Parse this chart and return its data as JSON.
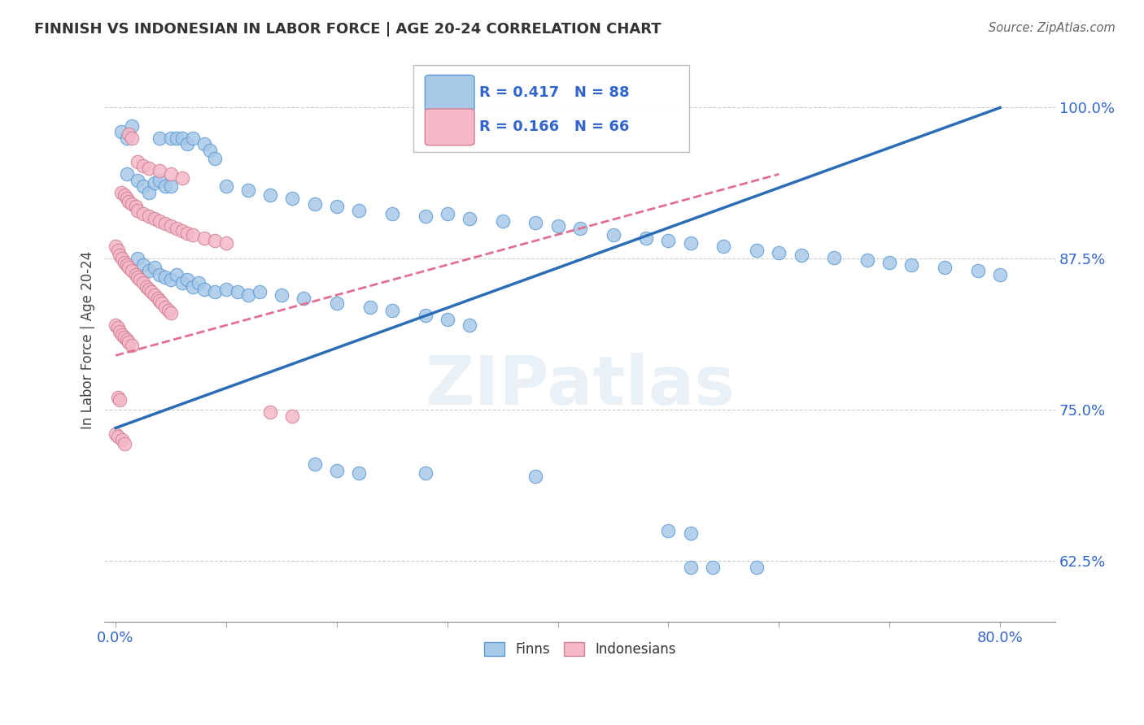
{
  "title": "FINNISH VS INDONESIAN IN LABOR FORCE | AGE 20-24 CORRELATION CHART",
  "source_text": "Source: ZipAtlas.com",
  "ylabel": "In Labor Force | Age 20-24",
  "ytick_labels": [
    "62.5%",
    "75.0%",
    "87.5%",
    "100.0%"
  ],
  "ytick_values": [
    0.625,
    0.75,
    0.875,
    1.0
  ],
  "xtick_positions": [
    0.0,
    0.1,
    0.2,
    0.3,
    0.4,
    0.5,
    0.6,
    0.7,
    0.8
  ],
  "xlim": [
    -0.01,
    0.85
  ],
  "ylim": [
    0.575,
    1.04
  ],
  "legend_blue_r": "R = 0.417",
  "legend_blue_n": "N = 88",
  "legend_pink_r": "R = 0.166",
  "legend_pink_n": "N = 66",
  "blue_color": "#a8c8e8",
  "blue_edge_color": "#5b9bd5",
  "pink_color": "#f4b8c8",
  "pink_edge_color": "#d08090",
  "blue_line_color": "#2a6db5",
  "pink_line_color": "#e07090",
  "legend_text_color": "#3366cc",
  "watermark": "ZIPatlas",
  "finn_label": "Finns",
  "indonesian_label": "Indonesians",
  "blue_line": [
    [
      0.0,
      0.735
    ],
    [
      0.8,
      1.0
    ]
  ],
  "pink_line": [
    [
      0.0,
      0.795
    ],
    [
      0.6,
      0.945
    ]
  ],
  "blue_scatter": [
    [
      0.005,
      0.98
    ],
    [
      0.01,
      0.975
    ],
    [
      0.015,
      0.985
    ],
    [
      0.04,
      0.975
    ],
    [
      0.05,
      0.975
    ],
    [
      0.055,
      0.975
    ],
    [
      0.06,
      0.975
    ],
    [
      0.065,
      0.97
    ],
    [
      0.07,
      0.975
    ],
    [
      0.08,
      0.97
    ],
    [
      0.085,
      0.965
    ],
    [
      0.09,
      0.958
    ],
    [
      0.01,
      0.945
    ],
    [
      0.02,
      0.94
    ],
    [
      0.025,
      0.935
    ],
    [
      0.03,
      0.93
    ],
    [
      0.035,
      0.938
    ],
    [
      0.04,
      0.94
    ],
    [
      0.045,
      0.935
    ],
    [
      0.05,
      0.935
    ],
    [
      0.1,
      0.935
    ],
    [
      0.12,
      0.932
    ],
    [
      0.14,
      0.928
    ],
    [
      0.16,
      0.925
    ],
    [
      0.18,
      0.92
    ],
    [
      0.2,
      0.918
    ],
    [
      0.22,
      0.915
    ],
    [
      0.25,
      0.912
    ],
    [
      0.28,
      0.91
    ],
    [
      0.3,
      0.912
    ],
    [
      0.32,
      0.908
    ],
    [
      0.35,
      0.906
    ],
    [
      0.38,
      0.905
    ],
    [
      0.4,
      0.902
    ],
    [
      0.42,
      0.9
    ],
    [
      0.45,
      0.895
    ],
    [
      0.48,
      0.892
    ],
    [
      0.5,
      0.89
    ],
    [
      0.52,
      0.888
    ],
    [
      0.55,
      0.885
    ],
    [
      0.58,
      0.882
    ],
    [
      0.6,
      0.88
    ],
    [
      0.62,
      0.878
    ],
    [
      0.65,
      0.876
    ],
    [
      0.68,
      0.874
    ],
    [
      0.7,
      0.872
    ],
    [
      0.72,
      0.87
    ],
    [
      0.75,
      0.868
    ],
    [
      0.78,
      0.865
    ],
    [
      0.8,
      0.862
    ],
    [
      0.02,
      0.875
    ],
    [
      0.025,
      0.87
    ],
    [
      0.03,
      0.865
    ],
    [
      0.035,
      0.868
    ],
    [
      0.04,
      0.862
    ],
    [
      0.045,
      0.86
    ],
    [
      0.05,
      0.858
    ],
    [
      0.055,
      0.862
    ],
    [
      0.06,
      0.855
    ],
    [
      0.065,
      0.858
    ],
    [
      0.07,
      0.852
    ],
    [
      0.075,
      0.855
    ],
    [
      0.08,
      0.85
    ],
    [
      0.09,
      0.848
    ],
    [
      0.1,
      0.85
    ],
    [
      0.11,
      0.848
    ],
    [
      0.12,
      0.845
    ],
    [
      0.13,
      0.848
    ],
    [
      0.15,
      0.845
    ],
    [
      0.17,
      0.842
    ],
    [
      0.2,
      0.838
    ],
    [
      0.23,
      0.835
    ],
    [
      0.25,
      0.832
    ],
    [
      0.28,
      0.828
    ],
    [
      0.3,
      0.825
    ],
    [
      0.32,
      0.82
    ],
    [
      0.18,
      0.705
    ],
    [
      0.2,
      0.7
    ],
    [
      0.22,
      0.698
    ],
    [
      0.38,
      0.695
    ],
    [
      0.28,
      0.698
    ],
    [
      0.5,
      0.65
    ],
    [
      0.52,
      0.648
    ],
    [
      0.52,
      0.62
    ],
    [
      0.54,
      0.62
    ],
    [
      0.58,
      0.62
    ]
  ],
  "pink_scatter": [
    [
      0.012,
      0.978
    ],
    [
      0.015,
      0.975
    ],
    [
      0.02,
      0.955
    ],
    [
      0.025,
      0.952
    ],
    [
      0.03,
      0.95
    ],
    [
      0.04,
      0.948
    ],
    [
      0.05,
      0.945
    ],
    [
      0.06,
      0.942
    ],
    [
      0.005,
      0.93
    ],
    [
      0.008,
      0.928
    ],
    [
      0.01,
      0.925
    ],
    [
      0.012,
      0.922
    ],
    [
      0.015,
      0.92
    ],
    [
      0.018,
      0.918
    ],
    [
      0.02,
      0.915
    ],
    [
      0.025,
      0.912
    ],
    [
      0.03,
      0.91
    ],
    [
      0.035,
      0.908
    ],
    [
      0.04,
      0.906
    ],
    [
      0.045,
      0.904
    ],
    [
      0.05,
      0.902
    ],
    [
      0.055,
      0.9
    ],
    [
      0.06,
      0.898
    ],
    [
      0.065,
      0.896
    ],
    [
      0.07,
      0.895
    ],
    [
      0.08,
      0.892
    ],
    [
      0.09,
      0.89
    ],
    [
      0.1,
      0.888
    ],
    [
      0.0,
      0.885
    ],
    [
      0.002,
      0.882
    ],
    [
      0.004,
      0.878
    ],
    [
      0.006,
      0.875
    ],
    [
      0.008,
      0.872
    ],
    [
      0.01,
      0.87
    ],
    [
      0.012,
      0.868
    ],
    [
      0.015,
      0.865
    ],
    [
      0.018,
      0.862
    ],
    [
      0.02,
      0.86
    ],
    [
      0.022,
      0.858
    ],
    [
      0.025,
      0.855
    ],
    [
      0.028,
      0.852
    ],
    [
      0.03,
      0.85
    ],
    [
      0.032,
      0.848
    ],
    [
      0.035,
      0.845
    ],
    [
      0.038,
      0.842
    ],
    [
      0.04,
      0.84
    ],
    [
      0.042,
      0.838
    ],
    [
      0.045,
      0.835
    ],
    [
      0.048,
      0.832
    ],
    [
      0.05,
      0.83
    ],
    [
      0.0,
      0.82
    ],
    [
      0.002,
      0.818
    ],
    [
      0.004,
      0.815
    ],
    [
      0.006,
      0.812
    ],
    [
      0.008,
      0.81
    ],
    [
      0.01,
      0.808
    ],
    [
      0.012,
      0.806
    ],
    [
      0.015,
      0.803
    ],
    [
      0.002,
      0.76
    ],
    [
      0.004,
      0.758
    ],
    [
      0.14,
      0.748
    ],
    [
      0.16,
      0.745
    ],
    [
      0.0,
      0.73
    ],
    [
      0.002,
      0.728
    ],
    [
      0.006,
      0.725
    ],
    [
      0.008,
      0.722
    ]
  ]
}
